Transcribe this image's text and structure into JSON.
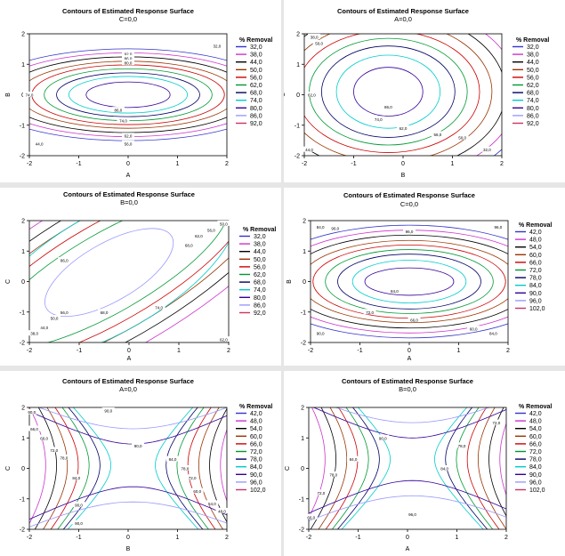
{
  "chart_data": [
    {
      "type": "contour",
      "title": "Contours of Estimated Response Surface",
      "subtitle": "C=0,0",
      "xlabel": "A",
      "ylabel": "B",
      "xlim": [
        -2,
        2
      ],
      "ylim": [
        -2,
        2
      ],
      "xticks": [
        "-2",
        "-1",
        "0",
        "1",
        "2"
      ],
      "yticks": [
        "-2",
        "-1",
        "0",
        "1",
        "2"
      ],
      "legend_title": "% Removal",
      "levels": [
        "32,0",
        "38,0",
        "44,0",
        "50,0",
        "56,0",
        "62,0",
        "68,0",
        "74,0",
        "80,0",
        "86,0",
        "92,0"
      ],
      "colors": [
        "#3333cc",
        "#cc33cc",
        "#000000",
        "#993300",
        "#cc0000",
        "#009933",
        "#000066",
        "#00cccc",
        "#330099",
        "#9999ff",
        "#cc3366"
      ],
      "center": [
        0,
        0
      ],
      "ellipse_axes": [
        [
          2.2,
          1.1
        ],
        [
          1.95,
          0.98
        ],
        [
          1.7,
          0.85
        ],
        [
          1.45,
          0.72
        ],
        [
          1.2,
          0.6
        ],
        [
          0.85,
          0.42
        ]
      ],
      "ellipse_color_index": [
        3,
        4,
        5,
        6,
        7,
        8
      ],
      "contour_labels": [
        {
          "text": "92,0",
          "x": 0,
          "y": 1.35
        },
        {
          "text": "86,0",
          "x": 0,
          "y": 1.2
        },
        {
          "text": "80,0",
          "x": 0,
          "y": 1.05
        },
        {
          "text": "74,0",
          "x": -2.0,
          "y": 0.0
        },
        {
          "text": "86,0",
          "x": -0.2,
          "y": -0.5
        },
        {
          "text": "74,0",
          "x": -0.1,
          "y": -0.85
        },
        {
          "text": "62,0",
          "x": 0,
          "y": -1.35
        },
        {
          "text": "56,0",
          "x": 0,
          "y": -1.6
        },
        {
          "text": "44,0",
          "x": -1.8,
          "y": -1.6
        },
        {
          "text": "32,0",
          "x": 1.8,
          "y": 1.6
        }
      ]
    },
    {
      "type": "contour",
      "title": "Contours of Estimated Response Surface",
      "subtitle": "A=0,0",
      "xlabel": "B",
      "ylabel": "C",
      "xlim": [
        -2,
        2
      ],
      "ylim": [
        -2,
        2
      ],
      "xticks": [
        "-2",
        "-1",
        "0",
        "1",
        "2"
      ],
      "yticks": [
        "-2",
        "-1",
        "0",
        "1",
        "2"
      ],
      "legend_title": "% Removal",
      "levels": [
        "32,0",
        "38,0",
        "44,0",
        "50,0",
        "56,0",
        "62,0",
        "68,0",
        "74,0",
        "80,0",
        "86,0",
        "92,0"
      ],
      "colors": [
        "#3333cc",
        "#cc33cc",
        "#000000",
        "#993300",
        "#cc0000",
        "#009933",
        "#000066",
        "#00cccc",
        "#330099",
        "#9999ff",
        "#cc3366"
      ],
      "center": [
        -0.3,
        0.1
      ],
      "ellipse_axes": [
        [
          2.1,
          2.3
        ],
        [
          1.85,
          2.0
        ],
        [
          1.6,
          1.75
        ],
        [
          1.35,
          1.5
        ],
        [
          1.05,
          1.2
        ],
        [
          0.7,
          0.8
        ]
      ],
      "ellipse_color_index": [
        3,
        4,
        5,
        6,
        7,
        8
      ],
      "contour_labels": [
        {
          "text": "38,0",
          "x": -1.8,
          "y": 1.9
        },
        {
          "text": "50,0",
          "x": -1.7,
          "y": 1.7
        },
        {
          "text": "62,0",
          "x": -1.85,
          "y": 0.0
        },
        {
          "text": "86,0",
          "x": -0.3,
          "y": -0.4
        },
        {
          "text": "74,0",
          "x": -0.5,
          "y": -0.8
        },
        {
          "text": "62,0",
          "x": 0.0,
          "y": -1.1
        },
        {
          "text": "56,0",
          "x": 0.7,
          "y": -1.3
        },
        {
          "text": "50,0",
          "x": 1.2,
          "y": -1.4
        },
        {
          "text": "44,0",
          "x": -1.9,
          "y": -1.8
        },
        {
          "text": "32,0",
          "x": 1.7,
          "y": -1.8
        }
      ]
    },
    {
      "type": "contour",
      "title": "Contours of Estimated Response Surface",
      "subtitle": "B=0,0",
      "xlabel": "A",
      "ylabel": "C",
      "xlim": [
        -2,
        2
      ],
      "ylim": [
        -2,
        2
      ],
      "xticks": [
        "-2",
        "-1",
        "0",
        "1",
        "2"
      ],
      "yticks": [
        "-2",
        "-1",
        "0",
        "1",
        "2"
      ],
      "legend_title": "% Removal",
      "levels": [
        "32,0",
        "38,0",
        "44,0",
        "50,0",
        "56,0",
        "62,0",
        "68,0",
        "74,0",
        "80,0",
        "86,0",
        "92,0"
      ],
      "colors": [
        "#3333cc",
        "#cc33cc",
        "#000000",
        "#993300",
        "#cc0000",
        "#009933",
        "#000066",
        "#00cccc",
        "#330099",
        "#9999ff",
        "#cc3366"
      ],
      "center": [
        -0.4,
        0.3
      ],
      "rotation_deg": -30,
      "ellipse_axes": [
        [
          2.9,
          1.95
        ],
        [
          1.45,
          0.95
        ]
      ],
      "ellipse_color_index": [
        7,
        9
      ],
      "contour_labels": [
        {
          "text": "86,0",
          "x": -1.3,
          "y": 0.7
        },
        {
          "text": "74,0",
          "x": 0.6,
          "y": -0.85
        },
        {
          "text": "68,0",
          "x": 1.2,
          "y": 1.2
        },
        {
          "text": "62,0",
          "x": 1.4,
          "y": 1.5
        },
        {
          "text": "56,0",
          "x": 1.65,
          "y": 1.7
        },
        {
          "text": "50,0",
          "x": 1.9,
          "y": 1.9
        },
        {
          "text": "68,0",
          "x": -0.5,
          "y": -1.0
        },
        {
          "text": "56,0",
          "x": -1.3,
          "y": -1.0
        },
        {
          "text": "50,0",
          "x": -1.5,
          "y": -1.2
        },
        {
          "text": "44,0",
          "x": -1.7,
          "y": -1.5
        },
        {
          "text": "38,0",
          "x": -1.9,
          "y": -1.7
        },
        {
          "text": "62,0",
          "x": 1.9,
          "y": -1.9
        }
      ]
    },
    {
      "type": "contour",
      "title": "Contours of Estimated Response Surface",
      "subtitle": "C=0,0",
      "xlabel": "A",
      "ylabel": "B",
      "xlim": [
        -2,
        2
      ],
      "ylim": [
        -2,
        2
      ],
      "xticks": [
        "-2",
        "-1",
        "0",
        "1",
        "2"
      ],
      "yticks": [
        "-2",
        "-1",
        "0",
        "1",
        "2"
      ],
      "legend_title": "% Removal",
      "levels": [
        "42,0",
        "48,0",
        "54,0",
        "60,0",
        "66,0",
        "72,0",
        "78,0",
        "84,0",
        "90,0",
        "96,0",
        "102,0"
      ],
      "colors": [
        "#3333cc",
        "#cc33cc",
        "#000000",
        "#993300",
        "#cc0000",
        "#009933",
        "#000066",
        "#00cccc",
        "#330099",
        "#9999ff",
        "#cc3366"
      ],
      "center": [
        0,
        0
      ],
      "ellipse_axes": [
        [
          2.2,
          1.35
        ],
        [
          1.95,
          1.2
        ],
        [
          1.7,
          1.05
        ],
        [
          1.45,
          0.9
        ],
        [
          1.15,
          0.7
        ],
        [
          0.9,
          0.45
        ]
      ],
      "ellipse_color_index": [
        3,
        4,
        5,
        6,
        7,
        8
      ],
      "contour_labels": [
        {
          "text": "96,0",
          "x": 0,
          "y": 1.65
        },
        {
          "text": "84,0",
          "x": -1.8,
          "y": 1.8
        },
        {
          "text": "90,0",
          "x": -1.5,
          "y": 1.75
        },
        {
          "text": "96,0",
          "x": 1.8,
          "y": 1.8
        },
        {
          "text": "84,0",
          "x": 1.7,
          "y": -1.7
        },
        {
          "text": "84,0",
          "x": -0.3,
          "y": -0.3
        },
        {
          "text": "72,0",
          "x": -0.8,
          "y": -1.0
        },
        {
          "text": "66,0",
          "x": 0.1,
          "y": -1.25
        },
        {
          "text": "60,0",
          "x": 1.3,
          "y": -1.55
        },
        {
          "text": "90,0",
          "x": -1.8,
          "y": -1.7
        }
      ]
    },
    {
      "type": "contour",
      "title": "Contours of Estimated Response Surface",
      "subtitle": "A=0,0",
      "xlabel": "B",
      "ylabel": "C",
      "xlim": [
        -2,
        2
      ],
      "ylim": [
        -2,
        2
      ],
      "xticks": [
        "-2",
        "-1",
        "0",
        "1",
        "2"
      ],
      "yticks": [
        "-2",
        "-1",
        "0",
        "1",
        "2"
      ],
      "legend_title": "% Removal",
      "levels": [
        "42,0",
        "48,0",
        "54,0",
        "60,0",
        "66,0",
        "72,0",
        "78,0",
        "84,0",
        "90,0",
        "96,0",
        "102,0"
      ],
      "colors": [
        "#3333cc",
        "#cc33cc",
        "#000000",
        "#993300",
        "#cc0000",
        "#009933",
        "#000066",
        "#00cccc",
        "#330099",
        "#9999ff",
        "#cc3366"
      ],
      "saddle": [
        0.1,
        0.1
      ],
      "contour_labels": [
        {
          "text": "90,0",
          "x": -1.95,
          "y": 1.85
        },
        {
          "text": "66,0",
          "x": -1.9,
          "y": 1.3
        },
        {
          "text": "60,0",
          "x": -1.7,
          "y": 1.0
        },
        {
          "text": "72,0",
          "x": -1.5,
          "y": 0.6
        },
        {
          "text": "78,0",
          "x": -1.3,
          "y": 0.35
        },
        {
          "text": "84,0",
          "x": -1.05,
          "y": -0.3
        },
        {
          "text": "90,0",
          "x": -0.4,
          "y": 1.9
        },
        {
          "text": "90,0",
          "x": 0.2,
          "y": 0.75
        },
        {
          "text": "90,0",
          "x": -1.0,
          "y": -1.2
        },
        {
          "text": "90,0",
          "x": -1.0,
          "y": -1.8
        },
        {
          "text": "84,0",
          "x": 0.9,
          "y": 0.3
        },
        {
          "text": "78,0",
          "x": 1.15,
          "y": 0.0
        },
        {
          "text": "72,0",
          "x": 1.3,
          "y": -0.3
        },
        {
          "text": "60,0",
          "x": 1.4,
          "y": -0.75
        },
        {
          "text": "54,0",
          "x": 1.7,
          "y": -1.15
        },
        {
          "text": "48,0",
          "x": 1.9,
          "y": -1.4
        }
      ]
    },
    {
      "type": "contour",
      "title": "Contours of Estimated Response Surface",
      "subtitle": "B=0,0",
      "xlabel": "A",
      "ylabel": "C",
      "xlim": [
        -2,
        2
      ],
      "ylim": [
        -2,
        2
      ],
      "xticks": [
        "-2",
        "-1",
        "0",
        "1",
        "2"
      ],
      "yticks": [
        "-2",
        "-1",
        "0",
        "1",
        "2"
      ],
      "legend_title": "% Removal",
      "levels": [
        "42,0",
        "48,0",
        "54,0",
        "60,0",
        "66,0",
        "72,0",
        "78,0",
        "84,0",
        "90,0",
        "96,0",
        "102,0"
      ],
      "colors": [
        "#3333cc",
        "#cc33cc",
        "#000000",
        "#993300",
        "#cc0000",
        "#009933",
        "#000066",
        "#00cccc",
        "#330099",
        "#9999ff",
        "#cc3366"
      ],
      "saddle": [
        0.1,
        0.3
      ],
      "contour_labels": [
        {
          "text": "90,0",
          "x": -0.5,
          "y": 1.0
        },
        {
          "text": "84,0",
          "x": -1.1,
          "y": 0.3
        },
        {
          "text": "78,0",
          "x": -1.5,
          "y": -0.2
        },
        {
          "text": "72,0",
          "x": -1.75,
          "y": -0.8
        },
        {
          "text": "66,0",
          "x": -1.95,
          "y": -1.6
        },
        {
          "text": "78,0",
          "x": 1.1,
          "y": 0.75
        },
        {
          "text": "72,0",
          "x": 1.8,
          "y": 1.5
        },
        {
          "text": "84,0",
          "x": 0.75,
          "y": 0.0
        },
        {
          "text": "96,0",
          "x": 0.1,
          "y": -1.5
        }
      ]
    }
  ]
}
